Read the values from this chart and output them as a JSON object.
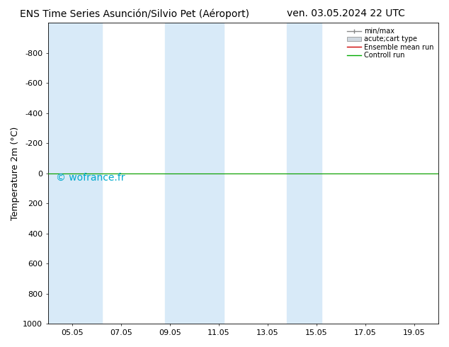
{
  "title_left": "ENS Time Series Asunción/Silvio Pet (Aéroport)",
  "title_right": "ven. 03.05.2024 22 UTC",
  "ylabel": "Temperature 2m (°C)",
  "watermark": "© wofrance.fr",
  "x_labels": [
    "05.05",
    "07.05",
    "09.05",
    "11.05",
    "13.05",
    "15.05",
    "17.05",
    "19.05"
  ],
  "x_values": [
    0,
    2,
    4,
    6,
    8,
    10,
    12,
    14
  ],
  "xlim": [
    -1,
    15
  ],
  "ylim": [
    -1000,
    1000
  ],
  "yticks": [
    -800,
    -600,
    -400,
    -200,
    0,
    200,
    400,
    600,
    800,
    1000
  ],
  "background_color": "#ffffff",
  "plot_bg_color": "#ffffff",
  "shaded_ranges": [
    [
      -1,
      1.2
    ],
    [
      3.8,
      6.2
    ],
    [
      8.8,
      10.2
    ]
  ],
  "shaded_color": "#d8eaf8",
  "green_line_y": 0,
  "red_line_y": 0,
  "legend_items": [
    "min/max",
    "acute;cart type",
    "Ensemble mean run",
    "Controll run"
  ],
  "title_fontsize": 10,
  "axis_fontsize": 8,
  "watermark_color": "#00aacc",
  "watermark_fontsize": 10
}
